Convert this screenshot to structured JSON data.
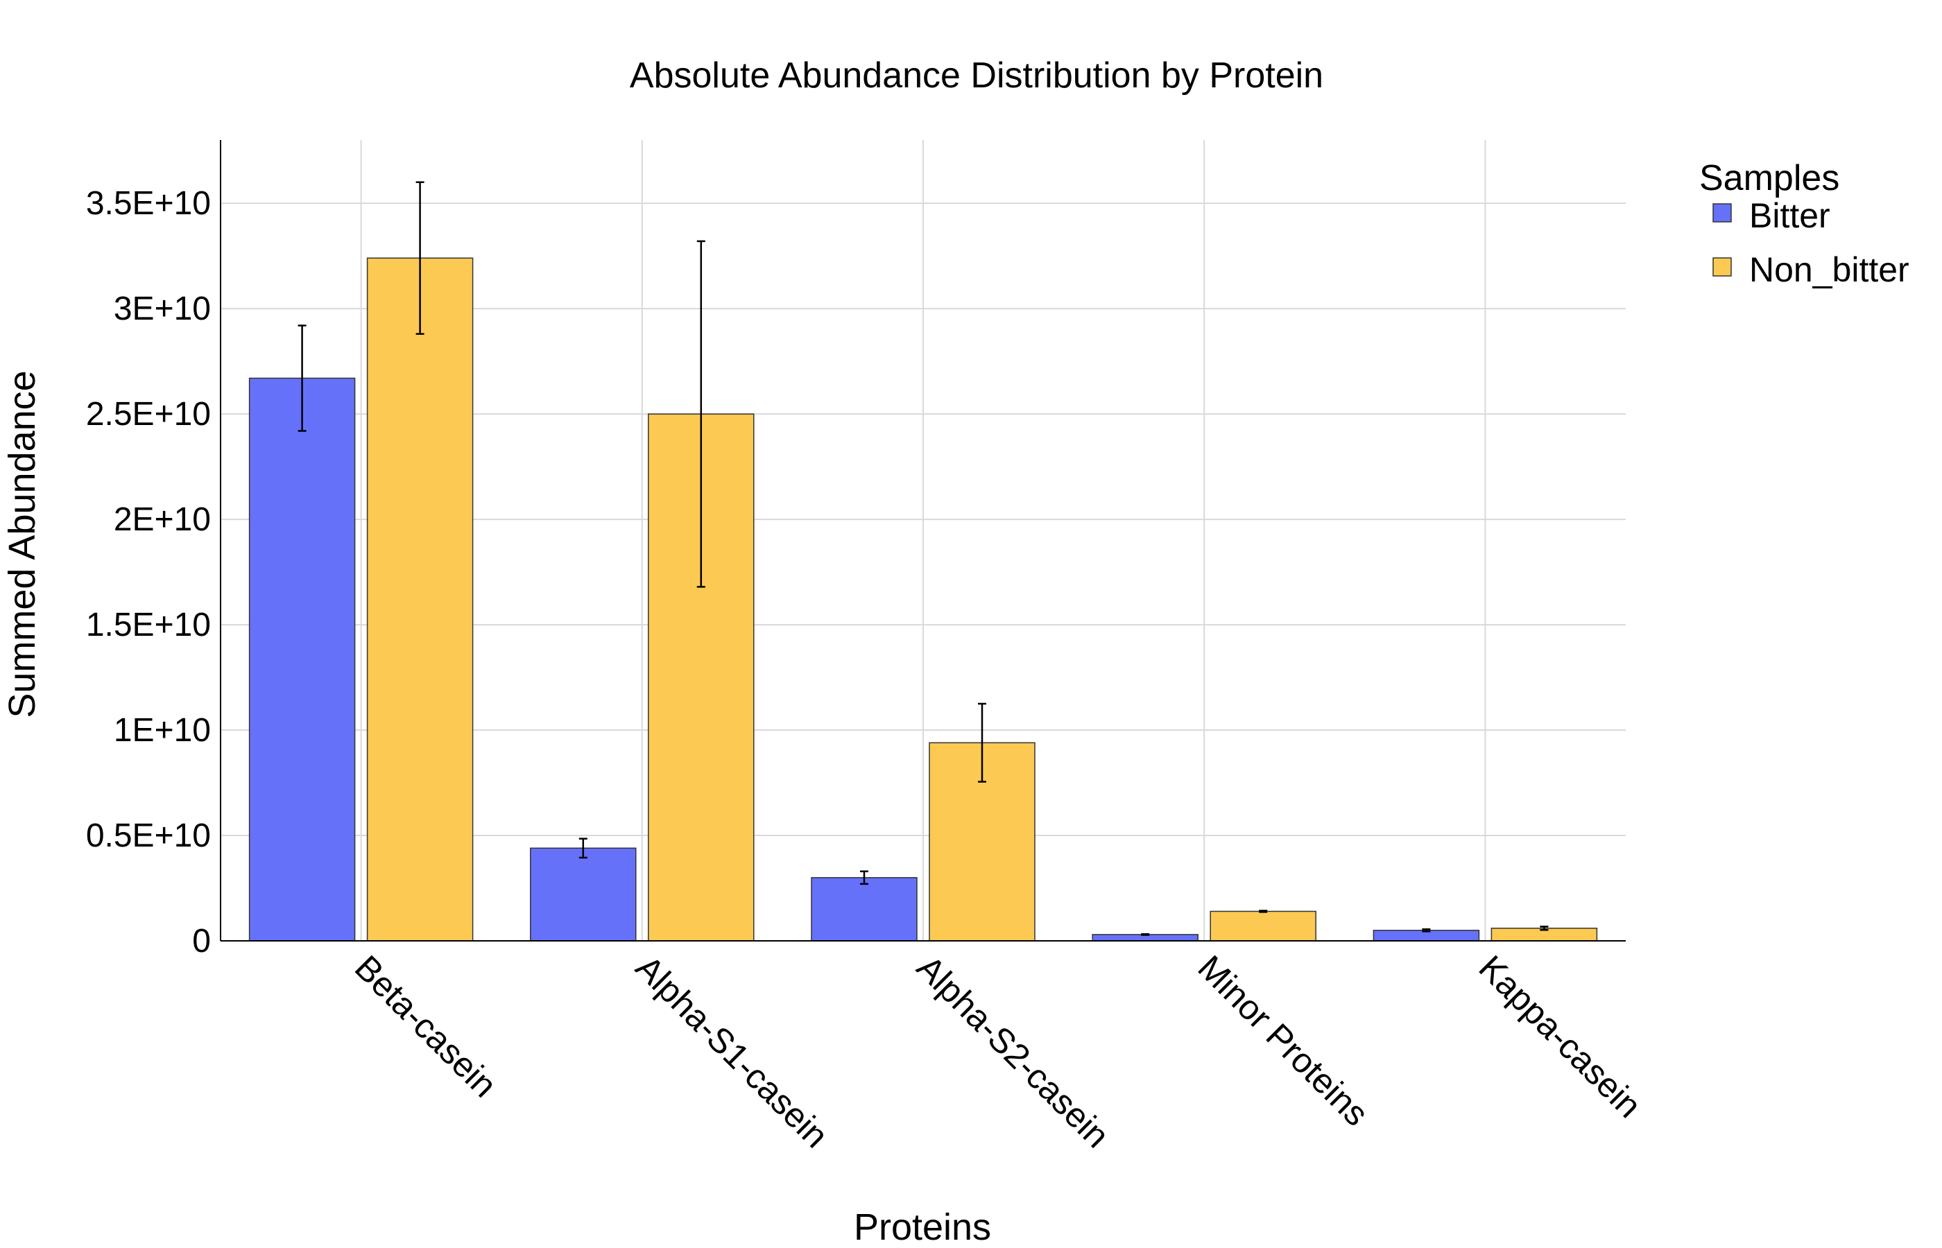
{
  "chart_data": {
    "type": "bar",
    "title": "Absolute Abundance Distribution by Protein",
    "xlabel": "Proteins",
    "ylabel": "Summed Abundance",
    "categories": [
      "Beta-casein",
      "Alpha-S1-casein",
      "Alpha-S2-casein",
      "Minor Proteins",
      "Kappa-casein"
    ],
    "series": [
      {
        "name": "Bitter",
        "color": "#6671fa",
        "values": [
          26700000000,
          4400000000,
          3000000000,
          300000000,
          500000000
        ],
        "errors": [
          2500000000,
          450000000,
          300000000,
          20000000,
          50000000
        ]
      },
      {
        "name": "Non_bitter",
        "color": "#fcc953",
        "values": [
          32400000000,
          25000000000,
          9400000000,
          1400000000,
          600000000
        ],
        "errors": [
          3600000000,
          8200000000,
          1850000000,
          30000000,
          80000000
        ]
      }
    ],
    "yticks": [
      0,
      5000000000,
      10000000000,
      15000000000,
      20000000000,
      25000000000,
      30000000000,
      35000000000
    ],
    "ytick_labels": [
      "0",
      "0.5E+10",
      "1E+10",
      "1.5E+10",
      "2E+10",
      "2.5E+10",
      "3E+10",
      "3.5E+10"
    ],
    "ylim": [
      0,
      38000000000
    ],
    "grid": true,
    "legend": {
      "title": "Samples",
      "position": "top-right"
    }
  }
}
